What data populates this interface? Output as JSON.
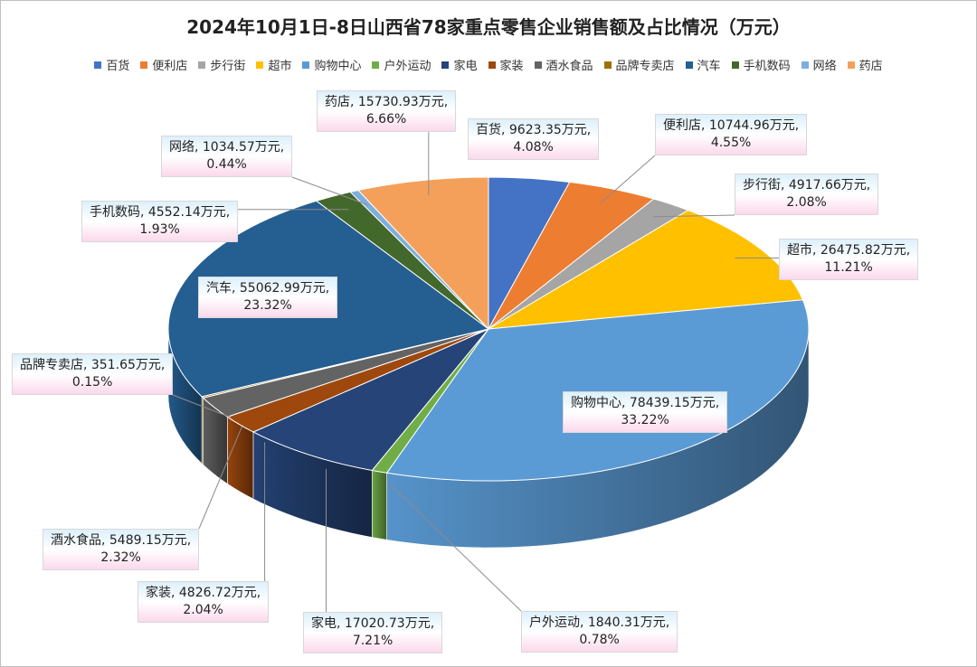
{
  "chart_data": {
    "type": "pie",
    "title": "2024年10月1日-8日山西省78家重点零售企业销售额及占比情况（万元）",
    "unit": "万元",
    "legend_position": "top",
    "series": [
      {
        "category": "百货",
        "value": 9623.35,
        "percent": "4.08%",
        "color": "#4472C4"
      },
      {
        "category": "便利店",
        "value": 10744.96,
        "percent": "4.55%",
        "color": "#ED7D31"
      },
      {
        "category": "步行街",
        "value": 4917.66,
        "percent": "2.08%",
        "color": "#A5A5A5"
      },
      {
        "category": "超市",
        "value": 26475.82,
        "percent": "11.21%",
        "color": "#FFC000"
      },
      {
        "category": "购物中心",
        "value": 78439.15,
        "percent": "33.22%",
        "color": "#5B9BD5"
      },
      {
        "category": "户外运动",
        "value": 1840.31,
        "percent": "0.78%",
        "color": "#70AD47"
      },
      {
        "category": "家电",
        "value": 17020.73,
        "percent": "7.21%",
        "color": "#264478"
      },
      {
        "category": "家装",
        "value": 4826.72,
        "percent": "2.04%",
        "color": "#9E480E"
      },
      {
        "category": "酒水食品",
        "value": 5489.15,
        "percent": "2.32%",
        "color": "#636363"
      },
      {
        "category": "品牌专卖店",
        "value": 351.65,
        "percent": "0.15%",
        "color": "#997300"
      },
      {
        "category": "汽车",
        "value": 55062.99,
        "percent": "23.32%",
        "color": "#255E91"
      },
      {
        "category": "手机数码",
        "value": 4552.14,
        "percent": "1.93%",
        "color": "#43682B"
      },
      {
        "category": "网络",
        "value": 1034.57,
        "percent": "0.44%",
        "color": "#7CAFDD"
      },
      {
        "category": "药店",
        "value": 15730.93,
        "percent": "6.66%",
        "color": "#F4A05A"
      }
    ]
  }
}
